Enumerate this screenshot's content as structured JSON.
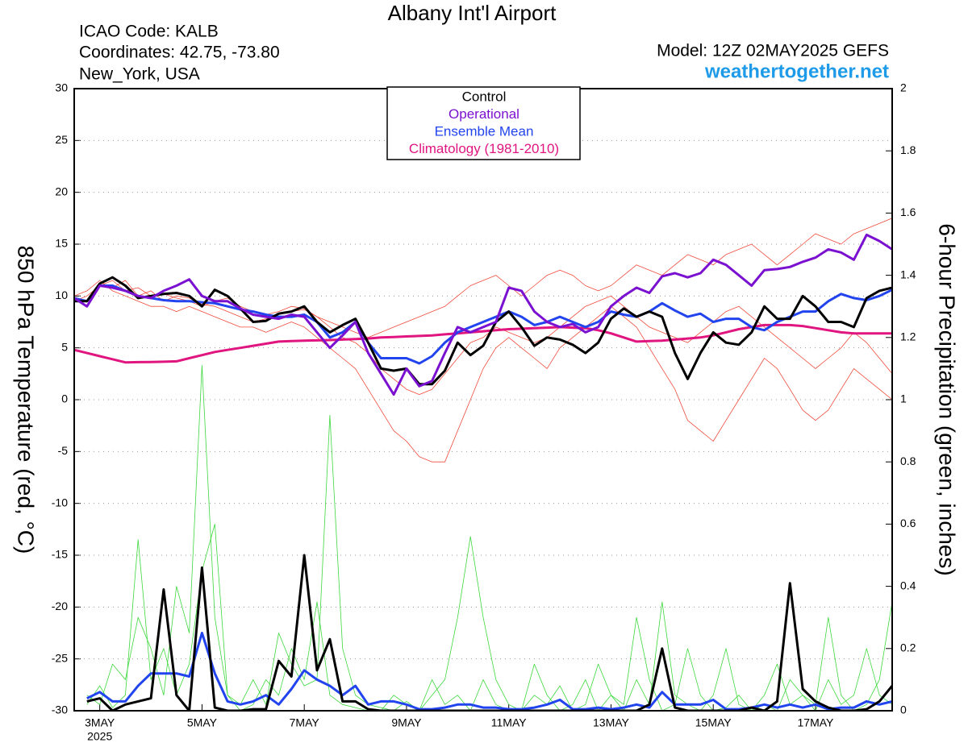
{
  "chart_data": {
    "type": "line",
    "title": "Albany Int'l Airport",
    "info": [
      "ICAO Code: KALB",
      "Coordinates: 42.75, -73.80",
      "New_York, USA"
    ],
    "model": "Model: 12Z 02MAY2025 GEFS",
    "website": "weathertogether.net",
    "ylabel": "850 hPa Temperature (red, °C)",
    "y2label": "6-hour Precipitation (green, inches)",
    "grid": true,
    "x": [
      "2025-05-02T12:00",
      "2025-05-02T18:00",
      "2025-05-03T00:00",
      "2025-05-03T06:00",
      "2025-05-03T12:00",
      "2025-05-03T18:00",
      "2025-05-04T00:00",
      "2025-05-04T06:00",
      "2025-05-04T12:00",
      "2025-05-04T18:00",
      "2025-05-05T00:00",
      "2025-05-05T06:00",
      "2025-05-05T12:00",
      "2025-05-05T18:00",
      "2025-05-06T00:00",
      "2025-05-06T06:00",
      "2025-05-06T12:00",
      "2025-05-06T18:00",
      "2025-05-07T00:00",
      "2025-05-07T06:00",
      "2025-05-07T12:00",
      "2025-05-07T18:00",
      "2025-05-08T00:00",
      "2025-05-08T06:00",
      "2025-05-08T12:00",
      "2025-05-08T18:00",
      "2025-05-09T00:00",
      "2025-05-09T06:00",
      "2025-05-09T12:00",
      "2025-05-09T18:00",
      "2025-05-10T00:00",
      "2025-05-10T06:00",
      "2025-05-10T12:00",
      "2025-05-10T18:00",
      "2025-05-11T00:00",
      "2025-05-11T06:00",
      "2025-05-11T12:00",
      "2025-05-11T18:00",
      "2025-05-12T00:00",
      "2025-05-12T06:00",
      "2025-05-12T12:00",
      "2025-05-12T18:00",
      "2025-05-13T00:00",
      "2025-05-13T06:00",
      "2025-05-13T12:00",
      "2025-05-13T18:00",
      "2025-05-14T00:00",
      "2025-05-14T06:00",
      "2025-05-14T12:00",
      "2025-05-14T18:00",
      "2025-05-15T00:00",
      "2025-05-15T06:00",
      "2025-05-15T12:00",
      "2025-05-15T18:00",
      "2025-05-16T00:00",
      "2025-05-16T06:00",
      "2025-05-16T12:00",
      "2025-05-16T18:00",
      "2025-05-17T00:00",
      "2025-05-17T06:00",
      "2025-05-17T12:00",
      "2025-05-17T18:00",
      "2025-05-18T00:00",
      "2025-05-18T06:00",
      "2025-05-18T12:00"
    ],
    "xlim": [
      "2025-05-02T12:00",
      "2025-05-18T12:00"
    ],
    "xticks": [
      {
        "value": "2025-05-03T00:00",
        "label": "3MAY"
      },
      {
        "value": "2025-05-05T00:00",
        "label": "5MAY"
      },
      {
        "value": "2025-05-07T00:00",
        "label": "7MAY"
      },
      {
        "value": "2025-05-09T00:00",
        "label": "9MAY"
      },
      {
        "value": "2025-05-11T00:00",
        "label": "11MAY"
      },
      {
        "value": "2025-05-13T00:00",
        "label": "13MAY"
      },
      {
        "value": "2025-05-15T00:00",
        "label": "15MAY"
      },
      {
        "value": "2025-05-17T00:00",
        "label": "17MAY"
      }
    ],
    "xtick_year": "2025",
    "ylim": [
      -30,
      30
    ],
    "yticks": [
      -30,
      -25,
      -20,
      -15,
      -10,
      -5,
      0,
      5,
      10,
      15,
      20,
      25,
      30
    ],
    "y2lim": [
      0,
      2
    ],
    "y2ticks": [
      0,
      0.2,
      0.4,
      0.6,
      0.8,
      1,
      1.2,
      1.4,
      1.6,
      1.8,
      2
    ],
    "series": [
      {
        "color": "#f04a3a",
        "width": 0.8,
        "values": [
          10,
          10.5,
          11.5,
          10.5,
          10,
          9.5,
          9,
          9,
          8.5,
          9,
          8.5,
          8,
          7.5,
          7,
          7,
          6.5,
          7,
          7.5,
          7,
          6,
          5,
          4,
          3,
          1,
          -1,
          -3,
          -4,
          -5.5,
          -6,
          -6,
          -3,
          0,
          3,
          5,
          6,
          5,
          4,
          3,
          5,
          6,
          7,
          8,
          9,
          8,
          7,
          5,
          3,
          1,
          -2,
          -3,
          -4,
          -2,
          0,
          2,
          4,
          3,
          1,
          -1,
          -2,
          -1,
          1,
          3,
          2,
          1,
          0
        ]
      },
      {
        "color": "#f04a3a",
        "width": 0.8,
        "values": [
          9.5,
          10,
          11,
          11.5,
          10.5,
          10.8,
          10,
          10.2,
          9.8,
          9.5,
          9,
          9.5,
          9.8,
          9,
          8.5,
          8.2,
          8.5,
          9,
          8.8,
          8,
          7.5,
          7,
          6.5,
          6,
          6.5,
          7,
          7.5,
          8,
          8.5,
          9,
          10,
          11,
          11.5,
          12,
          11,
          10,
          11,
          12,
          12.5,
          12,
          11,
          10.5,
          11,
          12,
          13,
          12.5,
          12,
          13,
          14,
          13.5,
          13,
          14,
          14.5,
          15,
          14,
          13,
          14,
          15,
          16,
          15.5,
          15,
          16,
          16.5,
          17,
          17.5
        ]
      },
      {
        "color": "#f04a3a",
        "width": 0.8,
        "values": [
          9.8,
          9.5,
          11,
          10.8,
          11.5,
          10,
          10.5,
          9.5,
          10,
          9.8,
          9.2,
          9,
          8.5,
          8,
          7.5,
          7.8,
          8.2,
          8.5,
          8.7,
          8,
          7,
          6,
          5.5,
          4.5,
          3,
          2,
          1,
          0.5,
          1,
          2.5,
          4,
          5.5,
          6,
          7,
          6.5,
          6,
          5.5,
          6,
          7,
          8,
          9,
          9.5,
          10,
          9,
          8,
          7,
          6.5,
          6,
          5.5,
          6.5,
          7.5,
          8.5,
          9,
          8,
          7,
          6,
          5,
          4,
          3,
          4,
          5,
          6.5,
          5.5,
          4,
          2.5
        ]
      },
      {
        "color": "#3cd83c",
        "width": 0.8,
        "axis": "y2",
        "values": [
          null,
          0.05,
          0.02,
          0.15,
          0.1,
          0.3,
          0.2,
          0.05,
          0.4,
          0.25,
          1.11,
          0.3,
          0.05,
          0,
          0.02,
          0.1,
          0.05,
          0.2,
          0.1,
          0.35,
          0.05,
          0.02,
          0.01,
          0,
          0,
          0.05,
          0.02,
          0,
          0.1,
          0.02,
          0.05,
          0,
          0.1,
          0.02,
          0,
          0,
          0.15,
          0.05,
          0,
          0.02,
          0.1,
          0,
          0.05,
          0.02,
          0.3,
          0.1,
          0,
          0.02,
          0.2,
          0.05,
          0,
          0.01,
          0.05,
          0,
          0.02,
          0,
          0.1,
          0.05,
          0.02,
          0.3,
          0.05,
          0,
          0.02,
          0.1,
          0.35
        ]
      },
      {
        "color": "#3cd83c",
        "width": 0.8,
        "axis": "y2",
        "values": [
          null,
          0.02,
          0.08,
          0.01,
          0.05,
          0.55,
          0.1,
          0.2,
          0.05,
          0.15,
          0.45,
          0.6,
          0.05,
          0.02,
          0.1,
          0.02,
          0.25,
          0.15,
          0.08,
          0.1,
          0.95,
          0.2,
          0.05,
          0.02,
          0.01,
          0,
          0.03,
          0,
          0.05,
          0.1,
          0.3,
          0.56,
          0.3,
          0.1,
          0.02,
          0,
          0.05,
          0.02,
          0.08,
          0,
          0.02,
          0.15,
          0.05,
          0,
          0.1,
          0.02,
          0.35,
          0.05,
          0.02,
          0,
          0.05,
          0.2,
          0.02,
          0,
          0.05,
          0.15,
          0.02,
          0.05,
          0,
          0.1,
          0.02,
          0.05,
          0.2,
          0.05,
          0.02
        ]
      },
      {
        "name": "Climatology (1981-2010)",
        "color": "#e0157f",
        "width": 3,
        "values": [
          4.8,
          4.5,
          4.2,
          3.9,
          3.6,
          3.62,
          3.64,
          3.66,
          3.7,
          4.0,
          4.3,
          4.6,
          4.8,
          5.0,
          5.2,
          5.4,
          5.6,
          5.65,
          5.7,
          5.72,
          5.75,
          5.8,
          5.85,
          5.9,
          6.0,
          6.05,
          6.1,
          6.15,
          6.2,
          6.3,
          6.4,
          6.5,
          6.6,
          6.7,
          6.8,
          6.85,
          6.9,
          6.95,
          7.0,
          6.95,
          6.9,
          6.7,
          6.4,
          6.0,
          5.6,
          5.65,
          5.7,
          5.8,
          5.9,
          6.0,
          6.2,
          6.5,
          6.8,
          7.0,
          7.2,
          7.2,
          7.2,
          7.1,
          6.9,
          6.7,
          6.5,
          6.4,
          6.4,
          6.4,
          6.4
        ]
      },
      {
        "color": "#2244ee",
        "width": 3,
        "axis": "y2",
        "values": [
          null,
          0.04,
          0.06,
          0.03,
          0.03,
          0.08,
          0.12,
          0.12,
          0.12,
          0.11,
          0.25,
          0.12,
          0.03,
          0.02,
          0.03,
          0.05,
          0.02,
          0.07,
          0.13,
          0.1,
          0.08,
          0.05,
          0.08,
          0.02,
          0.03,
          0.03,
          0.02,
          0.005,
          0.005,
          0.01,
          0.02,
          0.02,
          0.01,
          0.01,
          0.005,
          0.005,
          0.01,
          0.02,
          0.035,
          0.005,
          0.005,
          0.01,
          0.005,
          0.01,
          0.02,
          0.01,
          0.06,
          0.02,
          0.02,
          0.02,
          0.035,
          0.005,
          0.005,
          0.01,
          0.02,
          0.01,
          0.02,
          0.01,
          0.02,
          0.005,
          0.01,
          0.01,
          0.03,
          0.02,
          0.03
        ]
      },
      {
        "color": "#000000",
        "width": 3,
        "axis": "y2",
        "values": [
          null,
          0.03,
          0.04,
          0,
          0.02,
          0.03,
          0.04,
          0.39,
          0.05,
          0,
          0.46,
          0.01,
          0,
          0,
          0.005,
          0.005,
          0.16,
          0.11,
          0.5,
          0.13,
          0.23,
          0.03,
          0.03,
          0.005,
          0,
          0,
          0,
          0,
          0,
          0,
          0,
          0,
          0,
          0,
          0,
          0,
          0,
          0,
          0,
          0,
          0,
          0,
          0,
          0,
          0,
          0.02,
          0.2,
          0.01,
          0,
          0,
          0,
          0,
          0,
          0.01,
          0,
          0.03,
          0.41,
          0.07,
          0.03,
          0.01,
          0,
          0,
          0.005,
          0.03,
          0.08
        ]
      },
      {
        "name": "Ensemble Mean",
        "color": "#2244ee",
        "width": 3,
        "values": [
          9.8,
          9.5,
          11,
          11,
          10.5,
          10,
          9.8,
          9.6,
          9.5,
          9.5,
          9.4,
          9.3,
          9,
          8.7,
          8.5,
          8.2,
          8,
          8,
          8.2,
          7.5,
          6,
          6.5,
          7.5,
          5.5,
          4,
          4,
          4,
          3.5,
          4.2,
          5.5,
          6.5,
          7,
          7.5,
          8,
          8.5,
          8,
          7.2,
          7.5,
          8,
          7.5,
          7,
          7.5,
          8.5,
          8.2,
          8,
          8.5,
          9.3,
          8.6,
          8,
          8.3,
          7.5,
          7.8,
          7.8,
          7,
          6.7,
          7.5,
          8,
          8.5,
          8.5,
          9.5,
          10.2,
          9.8,
          9.6,
          10,
          10.6
        ]
      },
      {
        "name": "Control",
        "color": "#000000",
        "width": 3,
        "values": [
          9.5,
          9.5,
          11.2,
          11.8,
          11,
          9.8,
          10,
          10.2,
          10.3,
          10,
          9,
          10.6,
          10,
          8.8,
          7.5,
          7.6,
          8.3,
          8.5,
          9,
          7.5,
          6.5,
          7.2,
          7.8,
          5.5,
          3,
          2.8,
          3,
          1.5,
          1.5,
          2.8,
          5.5,
          4.3,
          5.2,
          7.5,
          8.5,
          7,
          5.2,
          6,
          5.8,
          5.3,
          4.5,
          5.5,
          7.8,
          8.8,
          8,
          8.5,
          8,
          4.5,
          2,
          4.5,
          6.5,
          5.5,
          5.3,
          6.5,
          9,
          7.8,
          7.8,
          10,
          9,
          7.5,
          7.5,
          7,
          9.8,
          10.5,
          10.8
        ]
      },
      {
        "name": "Operational",
        "color": "#7a10d0",
        "width": 3,
        "values": [
          9.8,
          9,
          11,
          10.8,
          10.5,
          10,
          9.8,
          10.5,
          11,
          11.6,
          10,
          9.5,
          9.5,
          8.8,
          8.2,
          8,
          7.8,
          8.2,
          8,
          6.5,
          5,
          6.2,
          7.5,
          4.5,
          2.5,
          0.5,
          3,
          1.3,
          1.8,
          4.5,
          7,
          6.5,
          7,
          7.5,
          10.8,
          10.5,
          8.5,
          7.5,
          7,
          7.3,
          6.5,
          7,
          9,
          10,
          10.8,
          10.3,
          11.9,
          12.2,
          11.8,
          12.2,
          13.5,
          13,
          12,
          11,
          12.5,
          12.6,
          12.8,
          13.3,
          13.7,
          14.5,
          14.2,
          13.5,
          15.9,
          15.3,
          14.5
        ]
      }
    ]
  }
}
